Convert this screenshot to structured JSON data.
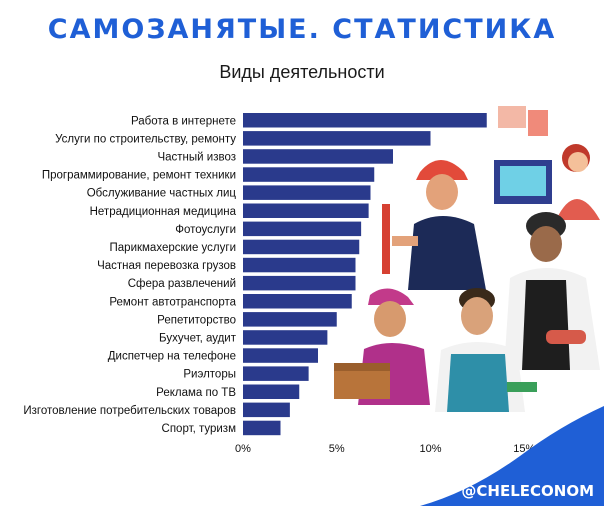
{
  "header": {
    "title": "САМОЗАНЯТЫЕ. СТАТИСТИКА",
    "subtitle": "Виды деятельности"
  },
  "footer": {
    "brand": "@CHELECONOM"
  },
  "colors": {
    "title": "#1f5fd6",
    "bar": "#2a3a8c",
    "wave": "#1f5fd6"
  },
  "chart_data": {
    "type": "bar",
    "orientation": "horizontal",
    "title": "Виды деятельности",
    "xlabel": "",
    "ylabel": "",
    "xlim": [
      0,
      16
    ],
    "x_ticks": [
      0,
      5,
      10,
      15
    ],
    "x_tick_labels": [
      "0%",
      "5%",
      "10%",
      "15%"
    ],
    "grid": false,
    "categories": [
      "Работа в интернете",
      "Услуги по строительству, ремонту",
      "Частный извоз",
      "Программирование, ремонт техники",
      "Обслуживание частных лиц",
      "Нетрадиционная медицина",
      "Фотоуслуги",
      "Парикмахерские услуги",
      "Частная перевозка грузов",
      "Сфера развлечений",
      "Ремонт автотранспорта",
      "Репетиторство",
      "Бухучет, аудит",
      "Диспетчер на телефоне",
      "Риэлторы",
      "Реклама по ТВ",
      "Изготовление потребительских товаров",
      "Спорт, туризм"
    ],
    "values": [
      13.0,
      10.0,
      8.0,
      7.0,
      6.8,
      6.7,
      6.3,
      6.2,
      6.0,
      6.0,
      5.8,
      5.0,
      4.5,
      4.0,
      3.5,
      3.0,
      2.5,
      2.0
    ]
  }
}
